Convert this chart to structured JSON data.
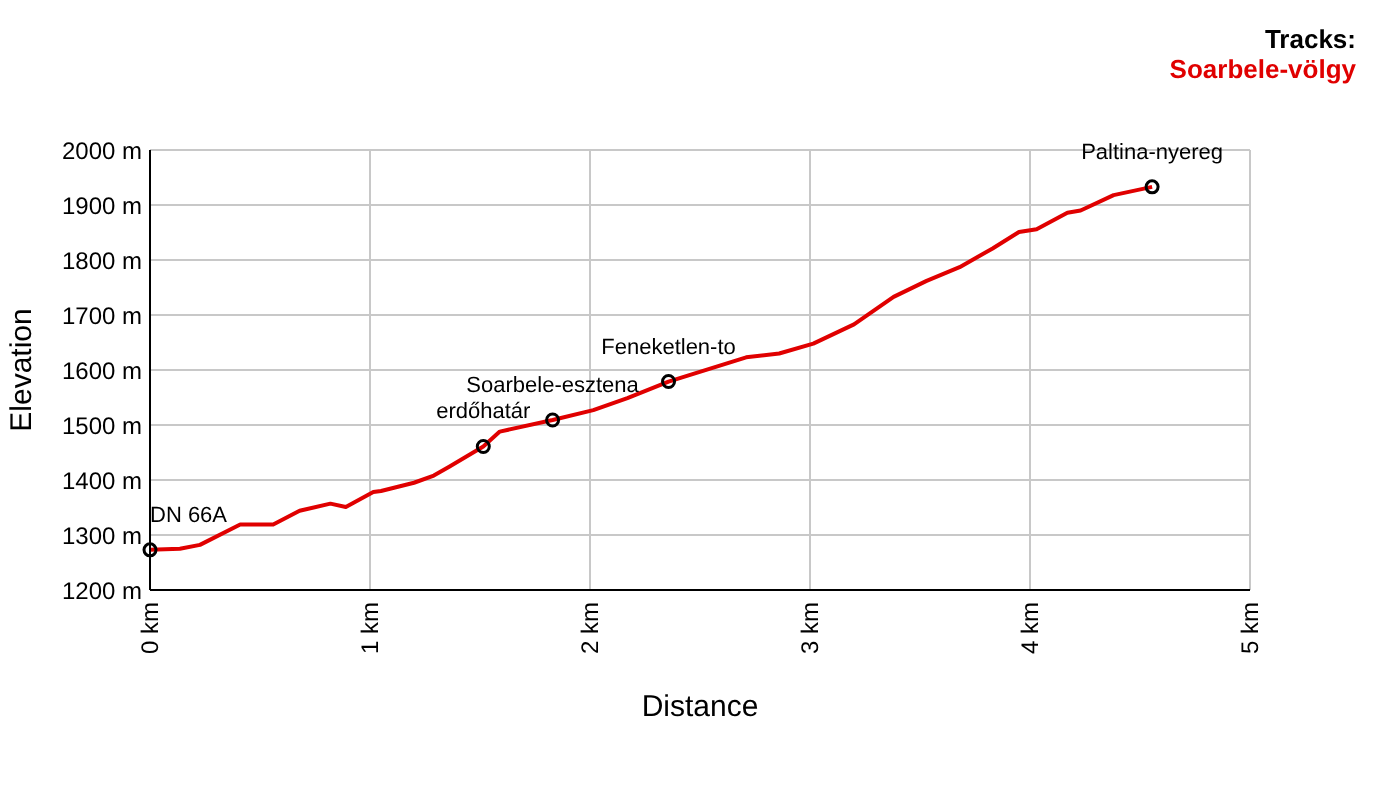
{
  "chart_data": {
    "type": "line",
    "xlabel": "Distance",
    "ylabel": "Elevation",
    "legend_title": "Tracks:",
    "x": [
      0,
      0.136,
      0.227,
      0.41,
      0.56,
      0.68,
      0.82,
      0.89,
      1.015,
      1.05,
      1.2,
      1.29,
      1.36,
      1.515,
      1.59,
      1.83,
      2.015,
      2.17,
      2.357,
      2.71,
      2.86,
      3.015,
      3.2,
      3.38,
      3.53,
      3.68,
      3.83,
      3.95,
      4.03,
      4.17,
      4.23,
      4.38,
      4.555
    ],
    "series": [
      {
        "name": "Soarbele-völgy",
        "color": "#e00000",
        "values": [
          1273,
          1275,
          1282,
          1319,
          1319,
          1344,
          1357,
          1351,
          1378,
          1380,
          1395,
          1408,
          1424,
          1461,
          1488,
          1509,
          1527,
          1549,
          1579,
          1623,
          1630,
          1648,
          1683,
          1733,
          1762,
          1787,
          1821,
          1851,
          1856,
          1886,
          1890,
          1918,
          1933
        ]
      }
    ],
    "xlim": [
      0,
      5
    ],
    "xticks": [
      {
        "value": 0,
        "label": "0 km"
      },
      {
        "value": 1,
        "label": "1 km"
      },
      {
        "value": 2,
        "label": "2 km"
      },
      {
        "value": 3,
        "label": "3 km"
      },
      {
        "value": 4,
        "label": "4 km"
      },
      {
        "value": 5,
        "label": "5 km"
      }
    ],
    "ylim": [
      1200,
      2000
    ],
    "yticks": [
      {
        "value": 1200,
        "label": "1200 m"
      },
      {
        "value": 1300,
        "label": "1300 m"
      },
      {
        "value": 1400,
        "label": "1400 m"
      },
      {
        "value": 1500,
        "label": "1500 m"
      },
      {
        "value": 1600,
        "label": "1600 m"
      },
      {
        "value": 1700,
        "label": "1700 m"
      },
      {
        "value": 1800,
        "label": "1800 m"
      },
      {
        "value": 1900,
        "label": "1900 m"
      },
      {
        "value": 2000,
        "label": "2000 m"
      }
    ],
    "annotations": [
      {
        "text": "DN 66A",
        "x": 0,
        "y": 1273
      },
      {
        "text": "erdőhatár",
        "x": 1.515,
        "y": 1461
      },
      {
        "text": "Soarbele-esztena",
        "x": 1.83,
        "y": 1509
      },
      {
        "text": "Feneketlen-to",
        "x": 2.357,
        "y": 1579
      },
      {
        "text": "Paltina-nyereg",
        "x": 4.555,
        "y": 1933
      }
    ],
    "grid": true,
    "legend": "top right",
    "marker": "none",
    "line_style": "solid"
  }
}
